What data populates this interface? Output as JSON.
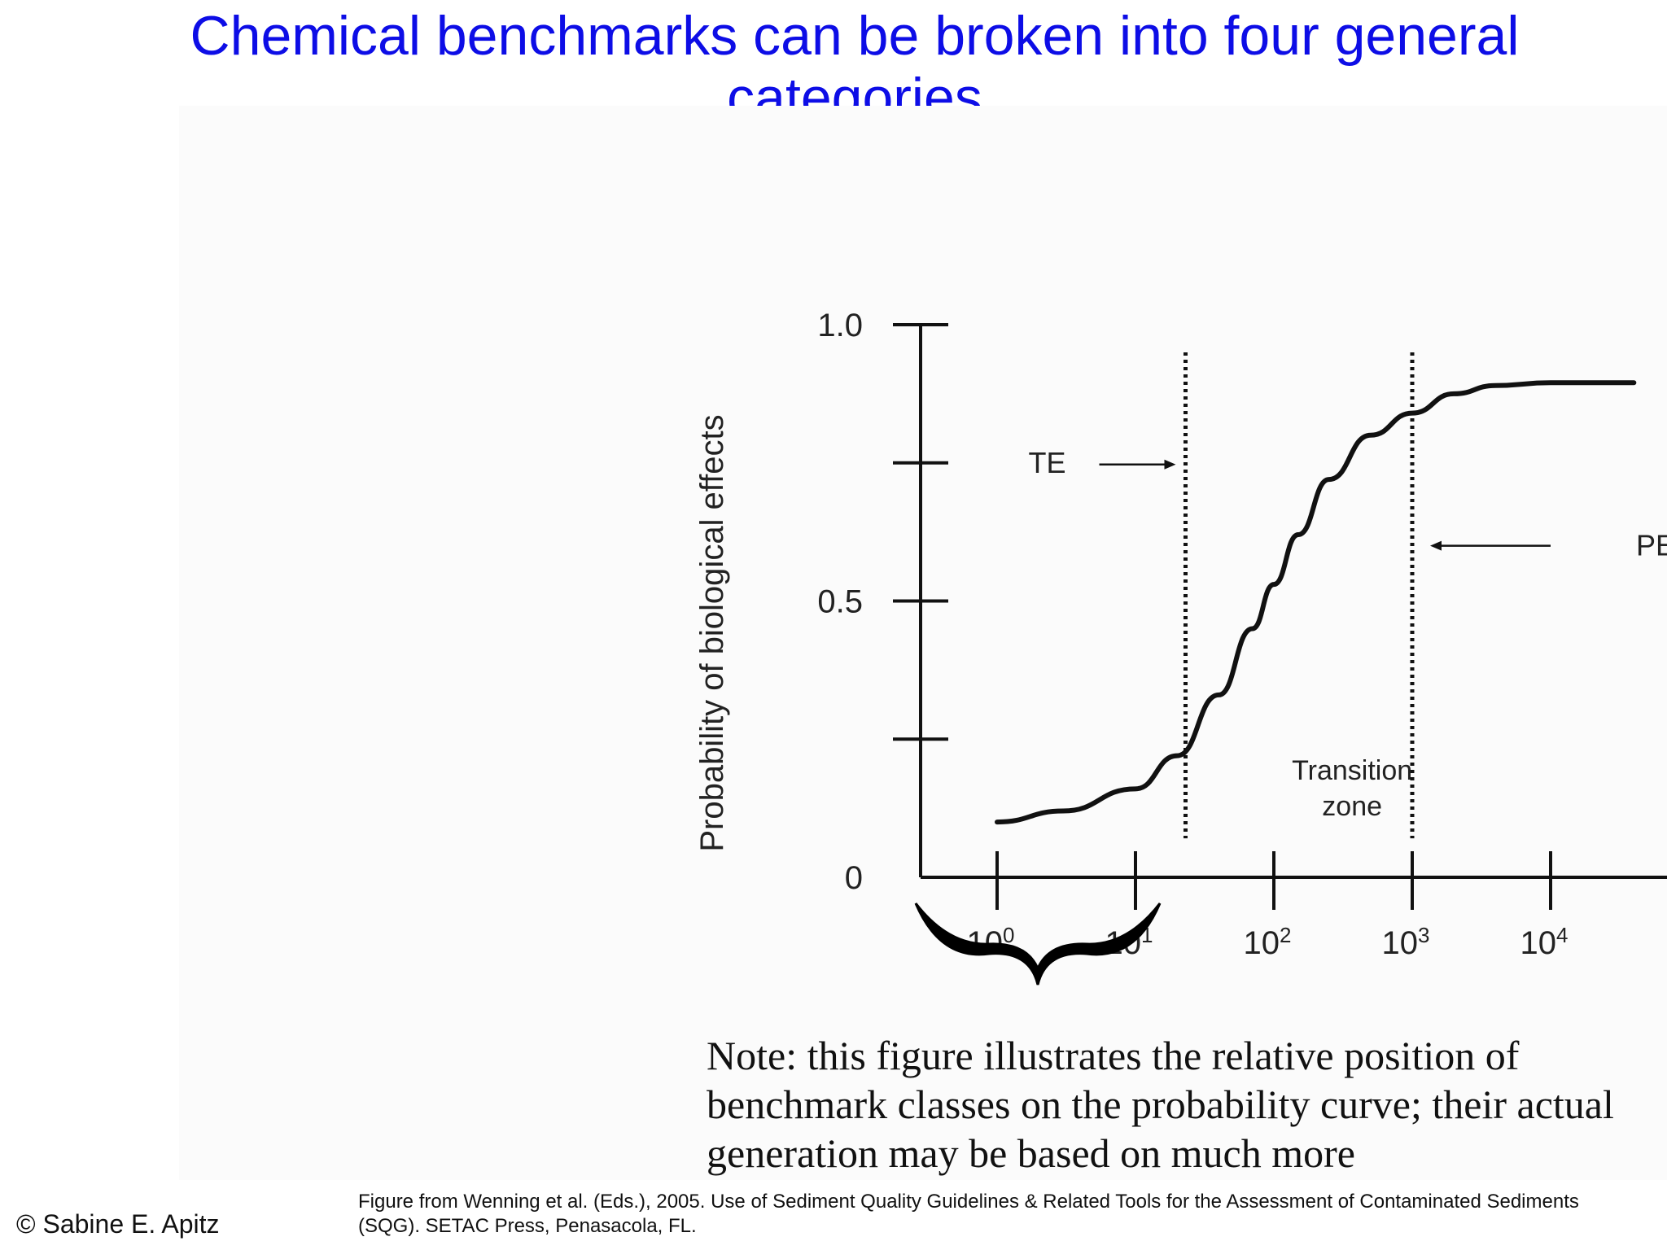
{
  "slide": {
    "title": "Chemical benchmarks can be broken into four general categories",
    "note": "Note: this figure illustrates the relative position of benchmark classes on the probability curve; their actual generation may be based on much more",
    "citation": "Figure from Wenning et al. (Eds.), 2005. Use of Sediment Quality Guidelines & Related Tools for the Assessment of Contaminated Sediments (SQG). SETAC Press, Penasacola, FL.",
    "copyright": "© Sabine E. Apitz"
  },
  "chart_data": {
    "type": "line",
    "ylabel": "Probability of biological effects",
    "xlabel": "",
    "x_scale": "log",
    "ylim": [
      0,
      1.0
    ],
    "y_ticks": [
      {
        "value": 0,
        "label": "0"
      },
      {
        "value": 0.5,
        "label": "0.5"
      },
      {
        "value": 1.0,
        "label": "1.0"
      }
    ],
    "y_unlabeled_ticks": [
      0.25,
      0.75
    ],
    "x_ticks": [
      {
        "value": 1,
        "base": "10",
        "exp": "0"
      },
      {
        "value": 10,
        "base": "10",
        "exp": "1"
      },
      {
        "value": 100,
        "base": "10",
        "exp": "2"
      },
      {
        "value": 1000,
        "base": "10",
        "exp": "3"
      },
      {
        "value": 10000,
        "base": "10",
        "exp": "4"
      }
    ],
    "series": [
      {
        "x": [
          1,
          3,
          10,
          20,
          40,
          70,
          100,
          150,
          250,
          500,
          1000,
          2000,
          4000,
          10000,
          40000
        ],
        "y": [
          0.1,
          0.12,
          0.16,
          0.22,
          0.33,
          0.45,
          0.53,
          0.62,
          0.72,
          0.8,
          0.84,
          0.875,
          0.89,
          0.895,
          0.895
        ]
      }
    ],
    "reference_lines": [
      {
        "x": 23,
        "label": "TE"
      },
      {
        "x": 1000,
        "label": "PE"
      }
    ],
    "annotations": [
      {
        "text_lines": [
          "Transition",
          "zone"
        ],
        "x": 200,
        "y": 0.18
      }
    ],
    "brace": {
      "from": 1,
      "to": 10
    }
  }
}
